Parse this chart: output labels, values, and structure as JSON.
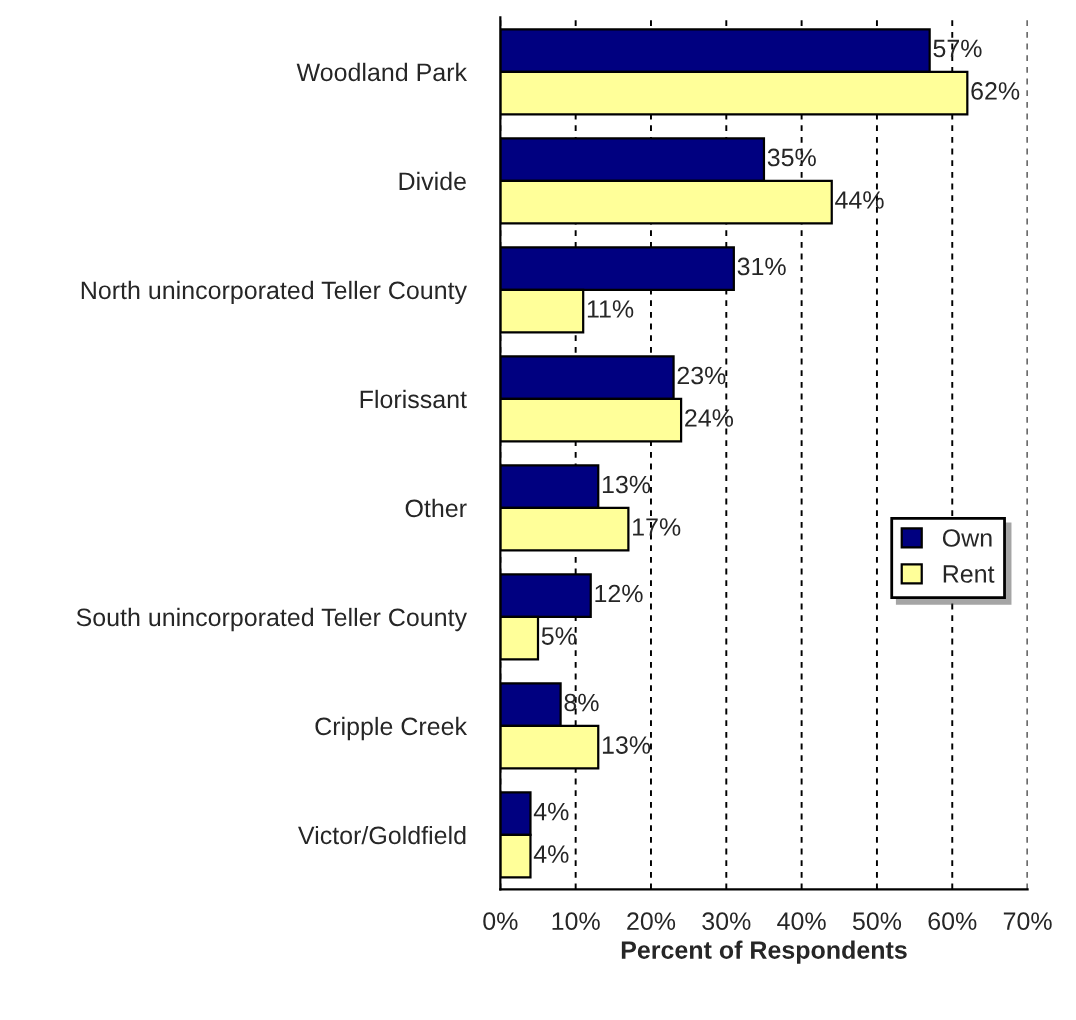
{
  "chart_data": {
    "type": "bar",
    "orientation": "horizontal",
    "categories": [
      "Woodland Park",
      "Divide",
      "North unincorporated Teller County",
      "Florissant",
      "Other",
      "South unincorporated Teller County",
      "Cripple Creek",
      "Victor/Goldfield"
    ],
    "series": [
      {
        "name": "Own",
        "color": "#000080",
        "values": [
          57,
          35,
          31,
          23,
          13,
          12,
          8,
          4
        ],
        "value_labels": [
          "57%",
          "35%",
          "31%",
          "23%",
          "13%",
          "12%",
          "8%",
          "4%"
        ]
      },
      {
        "name": "Rent",
        "color": "#ffff99",
        "values": [
          62,
          44,
          11,
          24,
          17,
          5,
          13,
          4
        ],
        "value_labels": [
          "62%",
          "44%",
          "11%",
          "24%",
          "17%",
          "5%",
          "13%",
          "4%"
        ]
      }
    ],
    "xlabel": "Percent of Respondents",
    "xlim": [
      0,
      70
    ],
    "xticks": [
      {
        "value": 0,
        "label": "0%"
      },
      {
        "value": 10,
        "label": "10%"
      },
      {
        "value": 20,
        "label": "20%"
      },
      {
        "value": 30,
        "label": "30%"
      },
      {
        "value": 40,
        "label": "40%"
      },
      {
        "value": 50,
        "label": "50%"
      },
      {
        "value": 60,
        "label": "60%"
      },
      {
        "value": 70,
        "label": "70%"
      }
    ],
    "grid": "x",
    "legend": "right"
  }
}
